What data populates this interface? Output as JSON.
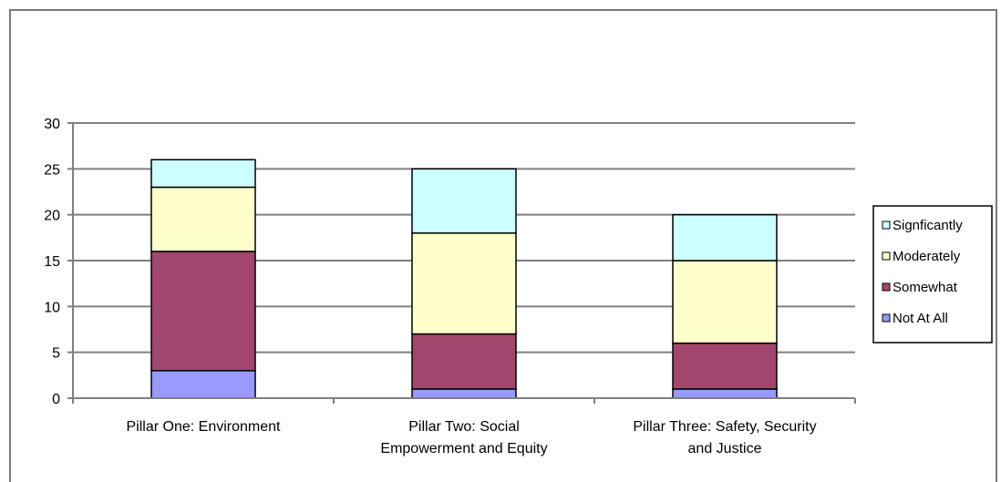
{
  "chart_data": {
    "type": "bar",
    "stacked": true,
    "categories": [
      [
        "Pillar One: Environment"
      ],
      [
        "Pillar Two: Social",
        "Empowerment and Equity"
      ],
      [
        "Pillar Three: Safety, Security",
        "and Justice"
      ]
    ],
    "series": [
      {
        "name": "Not At All",
        "color": "#9999ff",
        "values": [
          3,
          1,
          1
        ]
      },
      {
        "name": "Somewhat",
        "color": "#a3466e",
        "values": [
          13,
          6,
          5
        ]
      },
      {
        "name": "Moderately",
        "color": "#ffffcc",
        "values": [
          7,
          11,
          9
        ]
      },
      {
        "name": "Signficantly",
        "color": "#ccffff",
        "values": [
          3,
          7,
          5
        ]
      }
    ],
    "legend_order": [
      "Signficantly",
      "Moderately",
      "Somewhat",
      "Not At All"
    ],
    "ylim": [
      0,
      30
    ],
    "yticks": [
      0,
      5,
      10,
      15,
      20,
      25,
      30
    ],
    "grid": true,
    "legend_position": "right",
    "title": "",
    "xlabel": "",
    "ylabel": ""
  }
}
